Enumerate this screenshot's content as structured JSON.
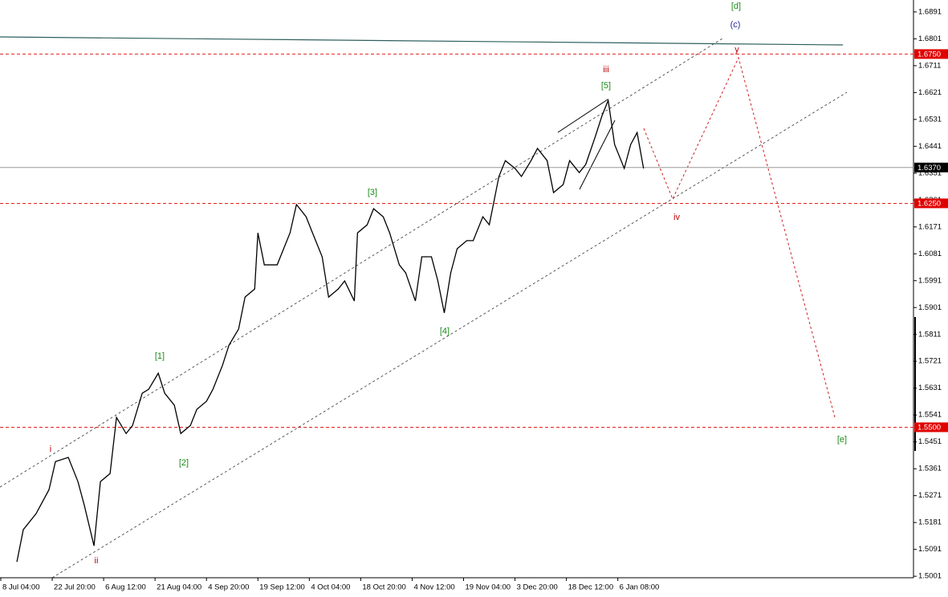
{
  "chart_data": {
    "type": "line",
    "xlim": [
      0,
      284
    ],
    "ylim": [
      1.4996,
      1.6931
    ],
    "xticks": [
      {
        "value": 0,
        "label": "8 Jul 04:00"
      },
      {
        "value": 16,
        "label": "22 Jul 20:00"
      },
      {
        "value": 32,
        "label": "6 Aug 12:00"
      },
      {
        "value": 48,
        "label": "21 Aug 04:00"
      },
      {
        "value": 64,
        "label": "4 Sep 20:00"
      },
      {
        "value": 80,
        "label": "19 Sep 12:00"
      },
      {
        "value": 96,
        "label": "4 Oct 04:00"
      },
      {
        "value": 112,
        "label": "18 Oct 20:00"
      },
      {
        "value": 128,
        "label": "4 Nov 12:00"
      },
      {
        "value": 144,
        "label": "19 Nov 04:00"
      },
      {
        "value": 160,
        "label": "3 Dec 20:00"
      },
      {
        "value": 176,
        "label": "18 Dec 12:00"
      },
      {
        "value": 192,
        "label": "6 Jan 08:00"
      }
    ],
    "yticks": [
      1.6891,
      1.6801,
      1.6711,
      1.6621,
      1.6531,
      1.6441,
      1.6351,
      1.6261,
      1.6171,
      1.6081,
      1.5991,
      1.5901,
      1.5811,
      1.5721,
      1.5631,
      1.5541,
      1.5451,
      1.5361,
      1.5271,
      1.5181,
      1.5091,
      1.5001
    ],
    "series": [
      {
        "color": "#000000",
        "x": [
          5,
          7,
          11,
          15,
          17,
          21,
          24,
          26,
          29,
          31,
          34,
          36,
          39,
          41,
          44,
          46,
          49,
          51,
          54,
          56,
          59,
          61,
          64,
          66,
          69,
          71,
          74,
          76,
          79,
          80,
          82,
          86,
          90,
          92,
          95,
          97,
          100,
          102,
          105,
          107,
          110,
          111,
          114,
          116,
          119,
          121,
          124,
          126,
          129,
          131,
          134,
          136,
          138,
          140,
          142,
          145,
          147,
          150,
          152,
          155,
          157,
          160,
          162,
          165,
          167,
          170,
          172,
          175,
          177,
          180,
          182,
          185,
          187,
          189,
          191,
          194,
          196,
          198,
          200
        ],
        "values": [
          1.5049,
          1.5157,
          1.5211,
          1.5291,
          1.5385,
          1.5399,
          1.5318,
          1.5238,
          1.5103,
          1.5318,
          1.5345,
          1.5533,
          1.5479,
          1.5506,
          1.5614,
          1.5627,
          1.5681,
          1.5614,
          1.5574,
          1.5479,
          1.5506,
          1.556,
          1.5587,
          1.5627,
          1.5708,
          1.5775,
          1.5829,
          1.5936,
          1.5963,
          1.6151,
          1.6044,
          1.6044,
          1.6151,
          1.6246,
          1.6205,
          1.6151,
          1.6071,
          1.5936,
          1.5963,
          1.599,
          1.5923,
          1.6151,
          1.6178,
          1.6232,
          1.6205,
          1.6151,
          1.6044,
          1.6017,
          1.5923,
          1.6071,
          1.6071,
          1.599,
          1.5883,
          1.6017,
          1.6098,
          1.6125,
          1.6125,
          1.6205,
          1.6178,
          1.634,
          1.6393,
          1.6367,
          1.634,
          1.6393,
          1.6434,
          1.6393,
          1.6286,
          1.6313,
          1.6393,
          1.6353,
          1.638,
          1.6474,
          1.6541,
          1.6595,
          1.6447,
          1.6367,
          1.6447,
          1.6487,
          1.6367
        ]
      }
    ],
    "levels": [
      {
        "value": 1.675,
        "label": "1.6750",
        "color": "#e00000"
      },
      {
        "value": 1.625,
        "label": "1.6250",
        "color": "#e00000"
      },
      {
        "value": 1.55,
        "label": "1.5500",
        "color": "#e00000"
      }
    ],
    "current_price": {
      "value": 1.637,
      "label": "1.6370",
      "color": "#000000"
    },
    "annotations": [
      {
        "text": "i",
        "color": "#c00000"
      },
      {
        "text": "ii",
        "color": "#c00000"
      },
      {
        "text": "iii",
        "color": "#c00000"
      },
      {
        "text": "iv",
        "color": "#c00000"
      },
      {
        "text": "y",
        "color": "#c00000"
      },
      {
        "text": "[1]",
        "color": "#1a8a1a"
      },
      {
        "text": "[2]",
        "color": "#1a8a1a"
      },
      {
        "text": "[3]",
        "color": "#1a8a1a"
      },
      {
        "text": "[4]",
        "color": "#1a8a1a"
      },
      {
        "text": "[5]",
        "color": "#1a8a1a"
      },
      {
        "text": "[d]",
        "color": "#1a8a1a"
      },
      {
        "text": "[e]",
        "color": "#1a8a1a"
      },
      {
        "text": "(c)",
        "color": "#2a2a9a"
      }
    ]
  }
}
